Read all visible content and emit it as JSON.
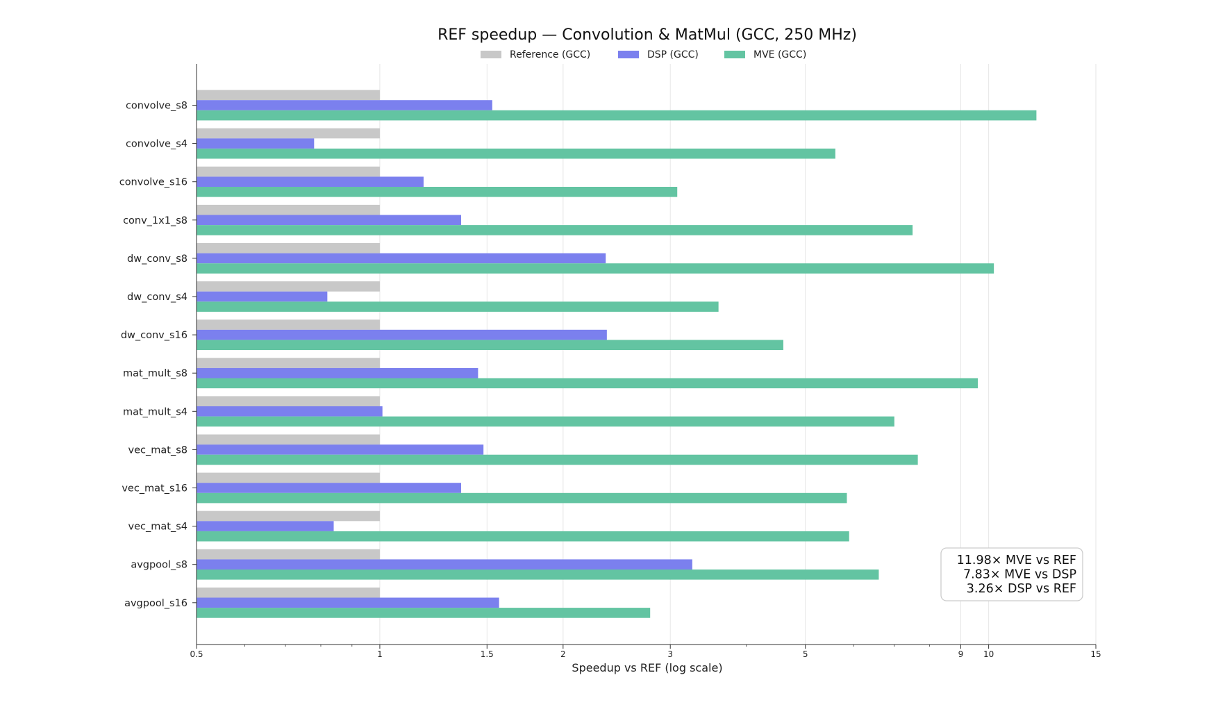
{
  "chart_data": {
    "type": "bar",
    "orientation": "horizontal",
    "title": "REF speedup — Convolution & MatMul (GCC, 250 MHz)",
    "xlabel": "Speedup vs REF (log scale)",
    "ylabel": "",
    "xscale": "log",
    "xlim": [
      0.5,
      15
    ],
    "xticks": [
      0.5,
      1,
      1.5,
      2,
      3,
      5,
      9,
      10,
      15
    ],
    "xtick_labels": [
      "0.5",
      "1",
      "1.5",
      "2",
      "3",
      "5",
      "9",
      "10",
      "15"
    ],
    "grid": "vertical",
    "legend_position": "top-center",
    "categories": [
      "convolve_s8",
      "convolve_s4",
      "convolve_s16",
      "conv_1x1_s8",
      "dw_conv_s8",
      "dw_conv_s4",
      "dw_conv_s16",
      "mat_mult_s8",
      "mat_mult_s4",
      "vec_mat_s8",
      "vec_mat_s16",
      "vec_mat_s4",
      "avgpool_s8",
      "avgpool_s16"
    ],
    "series": [
      {
        "name": "Reference (GCC)",
        "color": "#c8c8c8",
        "values": [
          1,
          1,
          1,
          1,
          1,
          1,
          1,
          1,
          1,
          1,
          1,
          1,
          1,
          1
        ]
      },
      {
        "name": "DSP (GCC)",
        "color": "#7b80ee",
        "values": [
          1.53,
          0.78,
          1.18,
          1.36,
          2.35,
          0.82,
          2.36,
          1.45,
          1.01,
          1.48,
          1.36,
          0.84,
          3.26,
          1.57
        ]
      },
      {
        "name": "MVE (GCC)",
        "color": "#63c4a2",
        "values": [
          11.98,
          5.6,
          3.08,
          7.5,
          10.2,
          3.6,
          4.6,
          9.6,
          7.0,
          7.65,
          5.85,
          5.9,
          6.6,
          2.78
        ]
      }
    ],
    "annotation": {
      "lines": [
        "11.98×  MVE vs REF",
        "7.83×  MVE vs DSP",
        "3.26×  DSP vs REF"
      ],
      "position": "bottom-right"
    }
  }
}
